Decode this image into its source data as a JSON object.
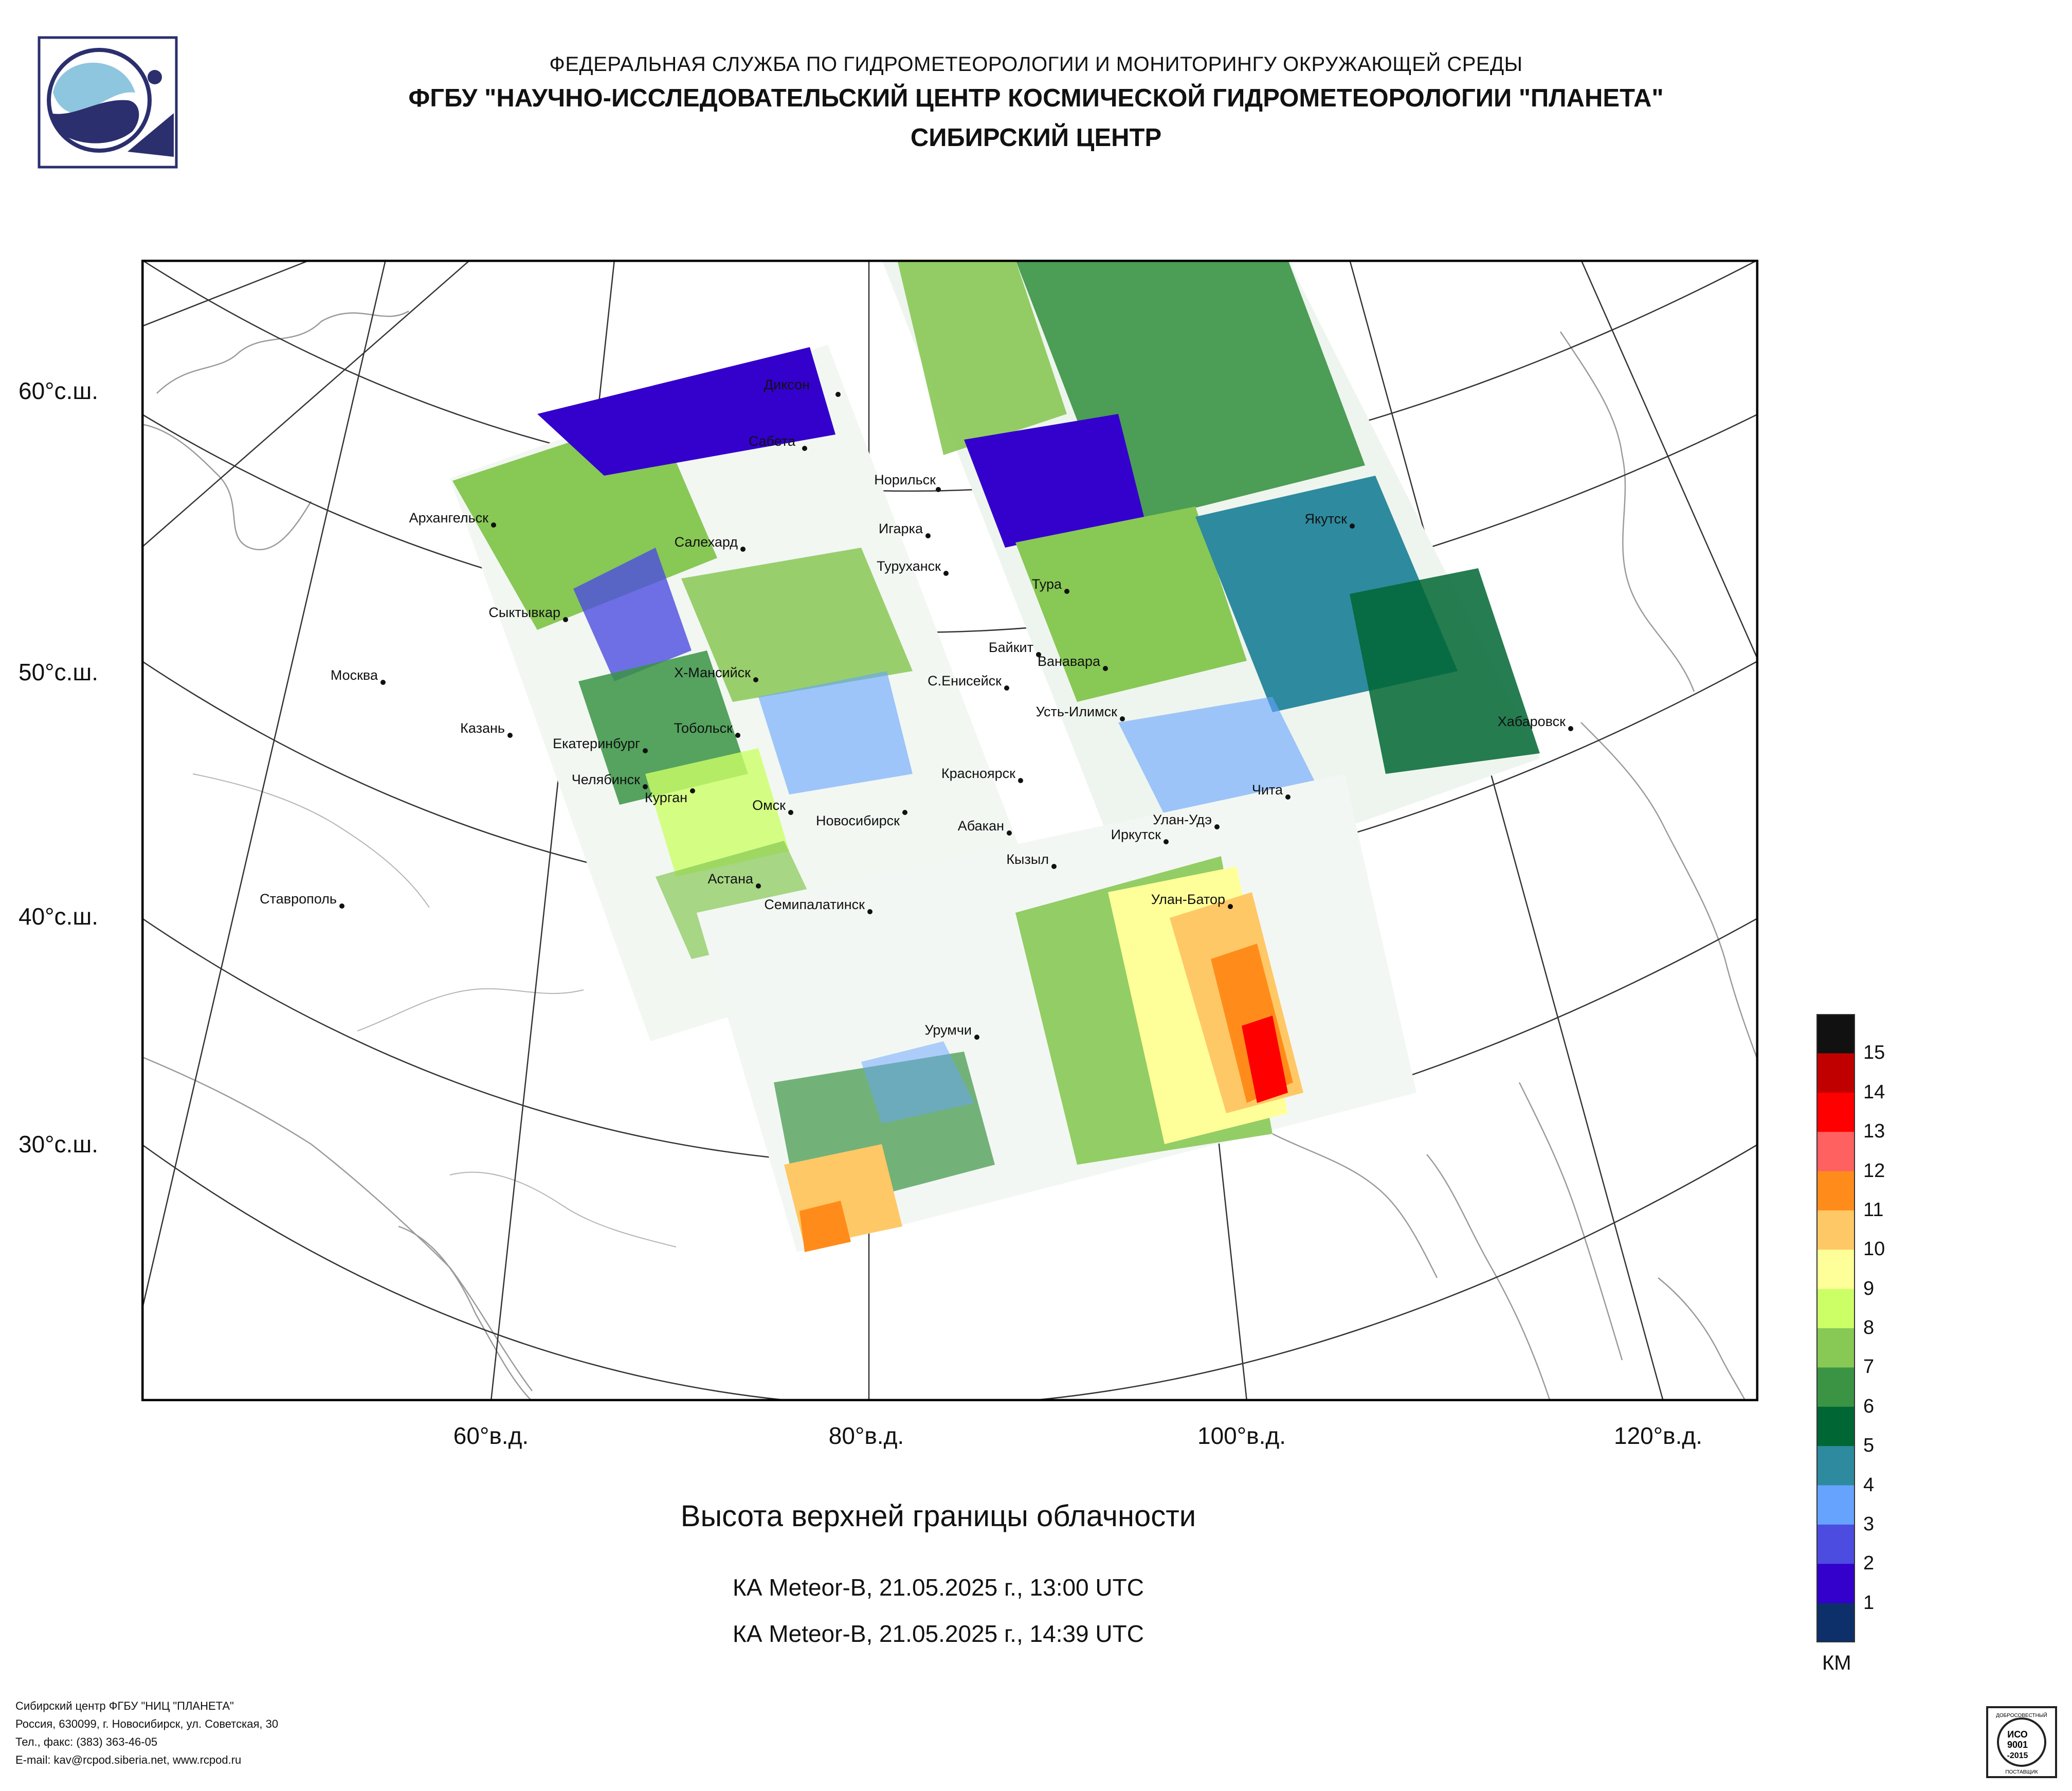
{
  "header": {
    "line1": "ФЕДЕРАЛЬНАЯ СЛУЖБА ПО ГИДРОМЕТЕОРОЛОГИИ И МОНИТОРИНГУ ОКРУЖАЮЩЕЙ СРЕДЫ",
    "line2": "ФГБУ \"НАУЧНО-ИССЛЕДОВАТЕЛЬСКИЙ ЦЕНТР КОСМИЧЕСКОЙ ГИДРОМЕТЕОРОЛОГИИ \"ПЛАНЕТА\"",
    "line3": "СИБИРСКИЙ ЦЕНТР"
  },
  "lat_labels": [
    "60°с.ш.",
    "50°с.ш.",
    "40°с.ш.",
    "30°с.ш."
  ],
  "lon_labels": [
    "60°в.д.",
    "80°в.д.",
    "100°в.д.",
    "120°в.д."
  ],
  "cities": [
    "Диксон",
    "Сабета",
    "Норильск",
    "Игарка",
    "Туруханск",
    "Тура",
    "Якутск",
    "Архангельск",
    "Салехард",
    "Сыктывкар",
    "Байкит",
    "Ванавара",
    "Москва",
    "Х-Мансийск",
    "С.Енисейск",
    "Усть-Илимск",
    "Казань",
    "Екатеринбург",
    "Тобольск",
    "Хабаровск",
    "Челябинск",
    "Курган",
    "Красноярск",
    "Чита",
    "Омск",
    "Новосибирск",
    "Улан-Удэ",
    "Абакан",
    "Иркутск",
    "Кызыл",
    "Астана",
    "Ставрополь",
    "Семипалатинск",
    "Улан-Батор",
    "Урумчи"
  ],
  "title": "Высота верхней границы облачности",
  "passes": [
    "КА Meteor-В, 21.05.2025 г., 13:00 UTC",
    "КА Meteor-В, 21.05.2025 г., 14:39 UTC"
  ],
  "legend": {
    "unit": "КМ",
    "labels": [
      "15",
      "14",
      "13",
      "12",
      "11",
      "10",
      "9",
      "8",
      "7",
      "6",
      "5",
      "4",
      "3",
      "2",
      "1"
    ],
    "colors": [
      "#111111",
      "#c00000",
      "#ff0000",
      "#ff6060",
      "#ff8c1a",
      "#ffc866",
      "#ffff99",
      "#ccff66",
      "#88c855",
      "#3a9444",
      "#006633",
      "#2e8a9e",
      "#66a3ff",
      "#4c4ce0",
      "#3300cc",
      "#0d2f6a"
    ]
  },
  "footer": {
    "line1": "Сибирский центр ФГБУ \"НИЦ \"ПЛАНЕТА\"",
    "line2": "Россия, 630099, г. Новосибирск, ул. Советская, 30",
    "line3": "Тел., факс: (383) 363-46-05",
    "line4": "E-mail: kav@rcpod.siberia.net, www.rcpod.ru"
  },
  "certificate": {
    "line1": "ДОБРОСОВЕСТНЫЙ",
    "line2": "ИСО",
    "line3": "9001",
    "line4": "-2015",
    "line5": "ПОСТАВЩИК"
  }
}
